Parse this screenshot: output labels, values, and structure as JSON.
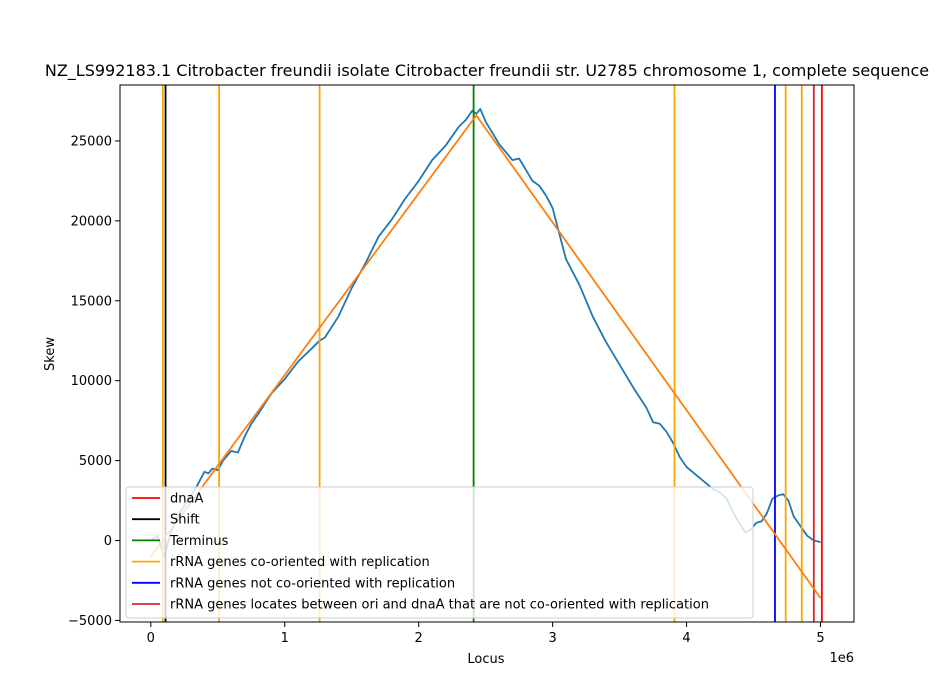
{
  "chart_data": {
    "type": "line",
    "title": "NZ_LS992183.1 Citrobacter freundii isolate Citrobacter freundii str. U2785 chromosome 1, complete sequence",
    "xlabel": "Locus",
    "ylabel": "Skew",
    "x_offset_label": "1e6",
    "xlim": [
      -230000,
      5250000
    ],
    "ylim": [
      -5100,
      28500
    ],
    "xticks": [
      0,
      1000000,
      2000000,
      3000000,
      4000000,
      5000000
    ],
    "xtick_labels": [
      "0",
      "1",
      "2",
      "3",
      "4",
      "5"
    ],
    "yticks": [
      -5000,
      0,
      5000,
      10000,
      15000,
      20000,
      25000
    ],
    "ytick_labels": [
      "−5000",
      "0",
      "5000",
      "10000",
      "15000",
      "20000",
      "25000"
    ],
    "grid": false,
    "legend_position": "lower-left",
    "colors": {
      "skew": "#1f77b4",
      "fit": "#ff7f0e",
      "dnaA": "#ff0000",
      "shift": "#000000",
      "terminus": "#008000",
      "rrna_co": "#ffa500",
      "rrna_not_co": "#0000ff",
      "rrna_between": "#d62728"
    },
    "series": [
      {
        "name": "skew",
        "x": [
          0,
          50000,
          100000,
          150000,
          200000,
          250000,
          300000,
          350000,
          400000,
          430000,
          460000,
          500000,
          540000,
          600000,
          650000,
          700000,
          750000,
          800000,
          900000,
          1000000,
          1100000,
          1200000,
          1260000,
          1300000,
          1400000,
          1500000,
          1600000,
          1700000,
          1800000,
          1900000,
          2000000,
          2100000,
          2200000,
          2300000,
          2350000,
          2400000,
          2430000,
          2460000,
          2500000,
          2550000,
          2600000,
          2650000,
          2700000,
          2750000,
          2800000,
          2850000,
          2900000,
          2950000,
          3000000,
          3050000,
          3100000,
          3200000,
          3300000,
          3400000,
          3500000,
          3600000,
          3700000,
          3750000,
          3800000,
          3850000,
          3900000,
          3950000,
          4000000,
          4100000,
          4200000,
          4250000,
          4300000,
          4350000,
          4400000,
          4440000,
          4480000,
          4520000,
          4560000,
          4600000,
          4640000,
          4680000,
          4720000,
          4760000,
          4800000,
          4850000,
          4900000,
          4950000,
          5000000
        ],
        "y": [
          0,
          300,
          -1000,
          500,
          1500,
          2200,
          2800,
          3500,
          4300,
          4200,
          4500,
          4400,
          5000,
          5600,
          5500,
          6500,
          7300,
          7900,
          9200,
          10100,
          11200,
          12000,
          12500,
          12700,
          14000,
          15800,
          17300,
          19000,
          20100,
          21400,
          22500,
          23800,
          24700,
          25900,
          26300,
          26900,
          26700,
          27000,
          26200,
          25500,
          24800,
          24300,
          23800,
          23900,
          23200,
          22500,
          22200,
          21600,
          20800,
          19200,
          17600,
          16000,
          14000,
          12400,
          11000,
          9600,
          8300,
          7400,
          7300,
          6800,
          6100,
          5200,
          4600,
          3900,
          3200,
          3000,
          2600,
          1700,
          1000,
          500,
          700,
          1100,
          1200,
          1700,
          2600,
          2800,
          2900,
          2500,
          1500,
          900,
          300,
          0,
          -100
        ]
      },
      {
        "name": "fit",
        "x": [
          0,
          2430000,
          5000000
        ],
        "y": [
          -1000,
          26600,
          -3600
        ]
      }
    ],
    "vlines": [
      {
        "key": "rrna_co",
        "x": 90000
      },
      {
        "key": "shift",
        "x": 110000
      },
      {
        "key": "rrna_co",
        "x": 510000
      },
      {
        "key": "rrna_co",
        "x": 1260000
      },
      {
        "key": "terminus",
        "x": 2410000
      },
      {
        "key": "rrna_co",
        "x": 3910000
      },
      {
        "key": "rrna_not_co",
        "x": 4660000
      },
      {
        "key": "rrna_co",
        "x": 4740000
      },
      {
        "key": "rrna_co",
        "x": 4860000
      },
      {
        "key": "rrna_between",
        "x": 4950000
      },
      {
        "key": "dnaA",
        "x": 5010000
      }
    ],
    "legend": [
      {
        "key": "dnaA",
        "label": "dnaA"
      },
      {
        "key": "shift",
        "label": "Shift"
      },
      {
        "key": "terminus",
        "label": "Terminus"
      },
      {
        "key": "rrna_co",
        "label": "rRNA genes co-oriented with replication"
      },
      {
        "key": "rrna_not_co",
        "label": "rRNA genes not co-oriented with replication"
      },
      {
        "key": "rrna_between",
        "label": "rRNA genes locates between ori and dnaA that are not co-oriented with replication"
      }
    ]
  }
}
